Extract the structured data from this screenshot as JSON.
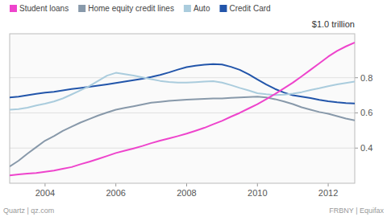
{
  "chart_data": {
    "type": "line",
    "title": "$1.0 trillion",
    "annotations": [
      "Quartz | qz.com",
      "FRBNY | Equifax"
    ],
    "x": [
      2003.0,
      2003.25,
      2003.5,
      2003.75,
      2004.0,
      2004.25,
      2004.5,
      2004.75,
      2005.0,
      2005.25,
      2005.5,
      2005.75,
      2006.0,
      2006.25,
      2006.5,
      2006.75,
      2007.0,
      2007.25,
      2007.5,
      2007.75,
      2008.0,
      2008.25,
      2008.5,
      2008.75,
      2009.0,
      2009.25,
      2009.5,
      2009.75,
      2010.0,
      2010.25,
      2010.5,
      2010.75,
      2011.0,
      2011.25,
      2011.5,
      2011.75,
      2012.0,
      2012.25,
      2012.5,
      2012.75
    ],
    "series": [
      {
        "name": "Student loans",
        "color": "#ee44cc",
        "values": [
          0.245,
          0.25,
          0.255,
          0.258,
          0.265,
          0.272,
          0.282,
          0.292,
          0.308,
          0.322,
          0.338,
          0.355,
          0.372,
          0.385,
          0.398,
          0.412,
          0.428,
          0.442,
          0.455,
          0.468,
          0.482,
          0.498,
          0.515,
          0.535,
          0.555,
          0.578,
          0.6,
          0.625,
          0.65,
          0.678,
          0.708,
          0.74,
          0.772,
          0.808,
          0.845,
          0.882,
          0.92,
          0.952,
          0.978,
          1.0
        ]
      },
      {
        "name": "Home equity credit lines",
        "color": "#8899aa",
        "values": [
          0.295,
          0.328,
          0.368,
          0.405,
          0.442,
          0.468,
          0.498,
          0.522,
          0.545,
          0.565,
          0.585,
          0.602,
          0.618,
          0.628,
          0.638,
          0.648,
          0.658,
          0.663,
          0.668,
          0.672,
          0.675,
          0.678,
          0.68,
          0.682,
          0.682,
          0.685,
          0.688,
          0.69,
          0.692,
          0.688,
          0.678,
          0.665,
          0.65,
          0.632,
          0.618,
          0.605,
          0.595,
          0.582,
          0.568,
          0.558
        ]
      },
      {
        "name": "Auto",
        "color": "#aaccdd",
        "values": [
          0.618,
          0.622,
          0.63,
          0.642,
          0.652,
          0.665,
          0.682,
          0.705,
          0.728,
          0.752,
          0.782,
          0.812,
          0.828,
          0.82,
          0.812,
          0.802,
          0.792,
          0.782,
          0.776,
          0.772,
          0.772,
          0.775,
          0.778,
          0.78,
          0.772,
          0.758,
          0.742,
          0.728,
          0.712,
          0.706,
          0.702,
          0.704,
          0.71,
          0.718,
          0.73,
          0.74,
          0.752,
          0.762,
          0.77,
          0.778
        ]
      },
      {
        "name": "Credit Card",
        "color": "#2255aa",
        "values": [
          0.688,
          0.692,
          0.7,
          0.708,
          0.715,
          0.72,
          0.728,
          0.736,
          0.742,
          0.748,
          0.755,
          0.762,
          0.77,
          0.778,
          0.786,
          0.794,
          0.804,
          0.816,
          0.83,
          0.846,
          0.86,
          0.868,
          0.874,
          0.878,
          0.875,
          0.862,
          0.845,
          0.82,
          0.79,
          0.762,
          0.736,
          0.716,
          0.7,
          0.692,
          0.684,
          0.674,
          0.666,
          0.66,
          0.656,
          0.654
        ]
      }
    ],
    "xlim": [
      2003.0,
      2012.75
    ],
    "ylim": [
      0.2,
      1.05
    ],
    "xticks": [
      2004,
      2006,
      2008,
      2010,
      2012
    ],
    "yticks": [
      0.4,
      0.6,
      0.8
    ],
    "grid": true,
    "legend": "top-left"
  }
}
